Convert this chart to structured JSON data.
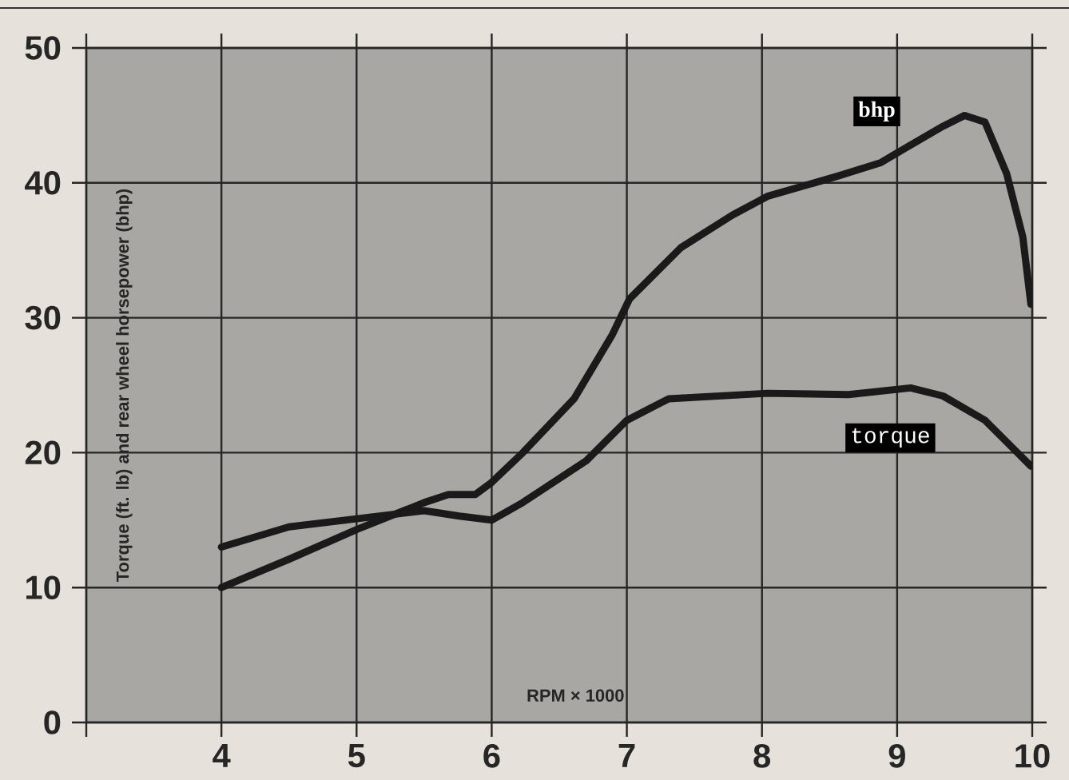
{
  "chart_data": {
    "type": "line",
    "xlabel": "RPM × 1000",
    "ylabel": "Torque (ft. lb) and rear wheel horsepower (bhp)",
    "xlim": [
      3,
      10
    ],
    "ylim": [
      0,
      50
    ],
    "xticks": [
      {
        "value": 3,
        "label": null
      },
      4,
      5,
      6,
      7,
      8,
      9,
      10
    ],
    "yticks": [
      0,
      10,
      20,
      30,
      40,
      50
    ],
    "grid": true,
    "marker": "none",
    "line_style": "solid",
    "series": [
      {
        "name": "bhp",
        "color": "#1a1a1a",
        "x": [
          4,
          4.5,
          5,
          5.5,
          5.68,
          5.88,
          6.0,
          6.23,
          6.61,
          6.89,
          7.02,
          7.4,
          7.78,
          8.04,
          8.56,
          8.88,
          9.03,
          9.34,
          9.5,
          9.65,
          9.81,
          9.93,
          9.99
        ],
        "values": [
          10,
          12.1,
          14.3,
          16.3,
          16.9,
          16.9,
          17.8,
          20,
          24,
          28.7,
          31.4,
          35.2,
          37.6,
          39,
          40.5,
          41.5,
          42.4,
          44.2,
          45,
          44.5,
          40.7,
          36,
          31
        ]
      },
      {
        "name": "torque",
        "color": "#1a1a1a",
        "x": [
          4,
          4.5,
          5,
          5.5,
          5.76,
          6.0,
          6.23,
          6.7,
          7.0,
          7.31,
          8.04,
          8.64,
          9.1,
          9.34,
          9.65,
          9.99
        ],
        "values": [
          13,
          14.5,
          15.1,
          15.7,
          15.3,
          15,
          16.3,
          19.4,
          22.4,
          24,
          24.4,
          24.3,
          24.8,
          24.2,
          22.4,
          19
        ]
      }
    ]
  }
}
